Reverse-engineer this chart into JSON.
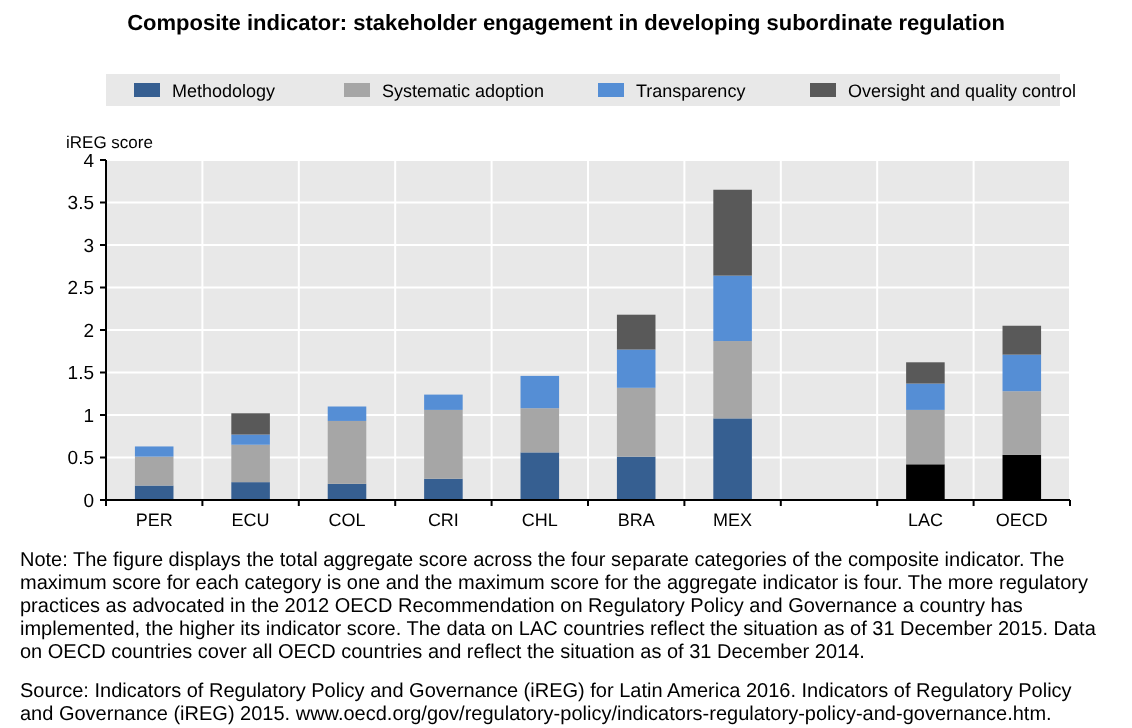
{
  "chart_data": {
    "type": "bar",
    "title": "Composite indicator: stakeholder engagement in developing subordinate regulation",
    "ylabel": "iREG score",
    "categories": [
      "PER",
      "ECU",
      "COL",
      "CRI",
      "CHL",
      "BRA",
      "MEX",
      null,
      "LAC",
      "OECD"
    ],
    "stacked": true,
    "series": [
      {
        "name": "Methodology",
        "color": "#365f91",
        "colors": [
          "#365f91",
          "#365f91",
          "#365f91",
          "#365f91",
          "#365f91",
          "#365f91",
          "#365f91",
          null,
          "#000000",
          "#000000"
        ],
        "values": [
          0.17,
          0.21,
          0.19,
          0.25,
          0.56,
          0.51,
          0.96,
          null,
          0.42,
          0.53
        ]
      },
      {
        "name": "Systematic adoption",
        "color": "#a6a6a6",
        "values": [
          0.34,
          0.44,
          0.74,
          0.81,
          0.52,
          0.81,
          0.91,
          null,
          0.64,
          0.75
        ]
      },
      {
        "name": "Transparency",
        "color": "#558ed5",
        "values": [
          0.12,
          0.12,
          0.17,
          0.18,
          0.38,
          0.45,
          0.77,
          null,
          0.31,
          0.43
        ]
      },
      {
        "name": "Oversight and quality control",
        "color": "#595959",
        "values": [
          0,
          0.25,
          0,
          0,
          0,
          0.41,
          1.01,
          null,
          0.25,
          0.34
        ]
      }
    ],
    "ylim": [
      0,
      4
    ],
    "yticks": [
      0,
      0.5,
      1,
      1.5,
      2,
      2.5,
      3,
      3.5,
      4
    ],
    "grid": true,
    "legend": "top",
    "annotations": [
      "Note: The figure displays the total aggregate score across the four separate categories of the composite indicator. The maximum score for each category is one and the maximum score for the aggregate indicator is four. The more regulatory practices as advocated in the 2012 OECD Recommendation on Regulatory Policy and Governance a country has implemented, the higher its indicator score. The data on LAC countries reflect the situation as of 31 December 2015. Data on OECD countries cover all OECD countries and reflect the situation as of 31 December 2014.",
      "Source: Indicators of Regulatory Policy and Governance (iREG) for Latin America 2016. Indicators of Regulatory Policy and Governance (iREG) 2015. www.oecd.org/gov/regulatory-policy/indicators-regulatory-policy-and-governance.htm."
    ]
  }
}
